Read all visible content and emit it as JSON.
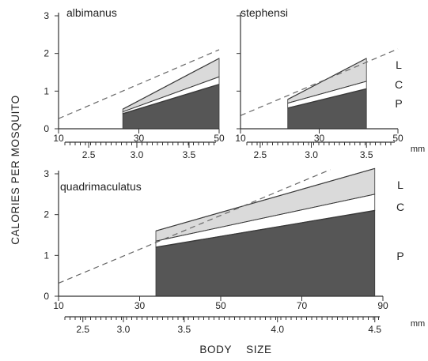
{
  "chart_data": {
    "type": "area",
    "ylabel": "CALORIES PER MOSQUITO",
    "xlabel": "BODY SIZE",
    "mm_unit": "mm",
    "band_labels": [
      "L",
      "C",
      "P"
    ],
    "colors": {
      "protein": "#565656",
      "carbohydrate": "#ffffff",
      "lipid": "#dadada",
      "edge": "#3a3a3a",
      "dashed_line": "#666666"
    },
    "panels": [
      {
        "title": "albimanus",
        "xlim": [
          10,
          50
        ],
        "ylim": [
          0,
          3
        ],
        "x_ticks": [
          10,
          30,
          50
        ],
        "y_ticks": [
          0,
          1,
          2,
          3
        ],
        "mm_ticks": [
          "2.5",
          "3.0",
          "3.5"
        ],
        "mm_positions": [
          17.5,
          29.5,
          42.5
        ],
        "band_start": 26,
        "band_end": 50,
        "protein": [
          0.4,
          1.18
        ],
        "carbohydrate": [
          0.45,
          1.38
        ],
        "lipid": [
          0.52,
          1.87
        ],
        "dashed": [
          [
            10,
            0.27
          ],
          [
            50,
            2.1
          ]
        ],
        "show_band_labels": false
      },
      {
        "title": "stephensi",
        "xlim": [
          10,
          50
        ],
        "ylim": [
          0,
          3
        ],
        "x_ticks": [
          10,
          30,
          50
        ],
        "y_ticks": [
          0,
          1,
          2,
          3
        ],
        "mm_ticks": [
          "2.5",
          "3.0",
          "3.5"
        ],
        "mm_positions": [
          15,
          28,
          42
        ],
        "band_start": 22,
        "band_end": 42,
        "protein": [
          0.55,
          1.06
        ],
        "carbohydrate": [
          0.68,
          1.26
        ],
        "lipid": [
          0.78,
          1.87
        ],
        "dashed": [
          [
            10,
            0.35
          ],
          [
            50,
            2.12
          ]
        ],
        "show_band_labels": true
      },
      {
        "title": "quadrimaculatus",
        "xlim": [
          10,
          90
        ],
        "ylim": [
          0,
          3
        ],
        "x_ticks": [
          10,
          30,
          50,
          70,
          90
        ],
        "y_ticks": [
          0,
          1,
          2,
          3
        ],
        "mm_ticks": [
          "2.5",
          "3.0",
          "3.5",
          "4.0",
          "4.5"
        ],
        "mm_positions": [
          16,
          26,
          41,
          64,
          88
        ],
        "band_start": 34,
        "band_end": 88,
        "protein": [
          1.2,
          2.1
        ],
        "carbohydrate": [
          1.35,
          2.5
        ],
        "lipid": [
          1.6,
          3.13
        ],
        "dashed": [
          [
            10,
            0.32
          ],
          [
            77,
            3.1
          ]
        ],
        "show_band_labels": true
      }
    ]
  }
}
